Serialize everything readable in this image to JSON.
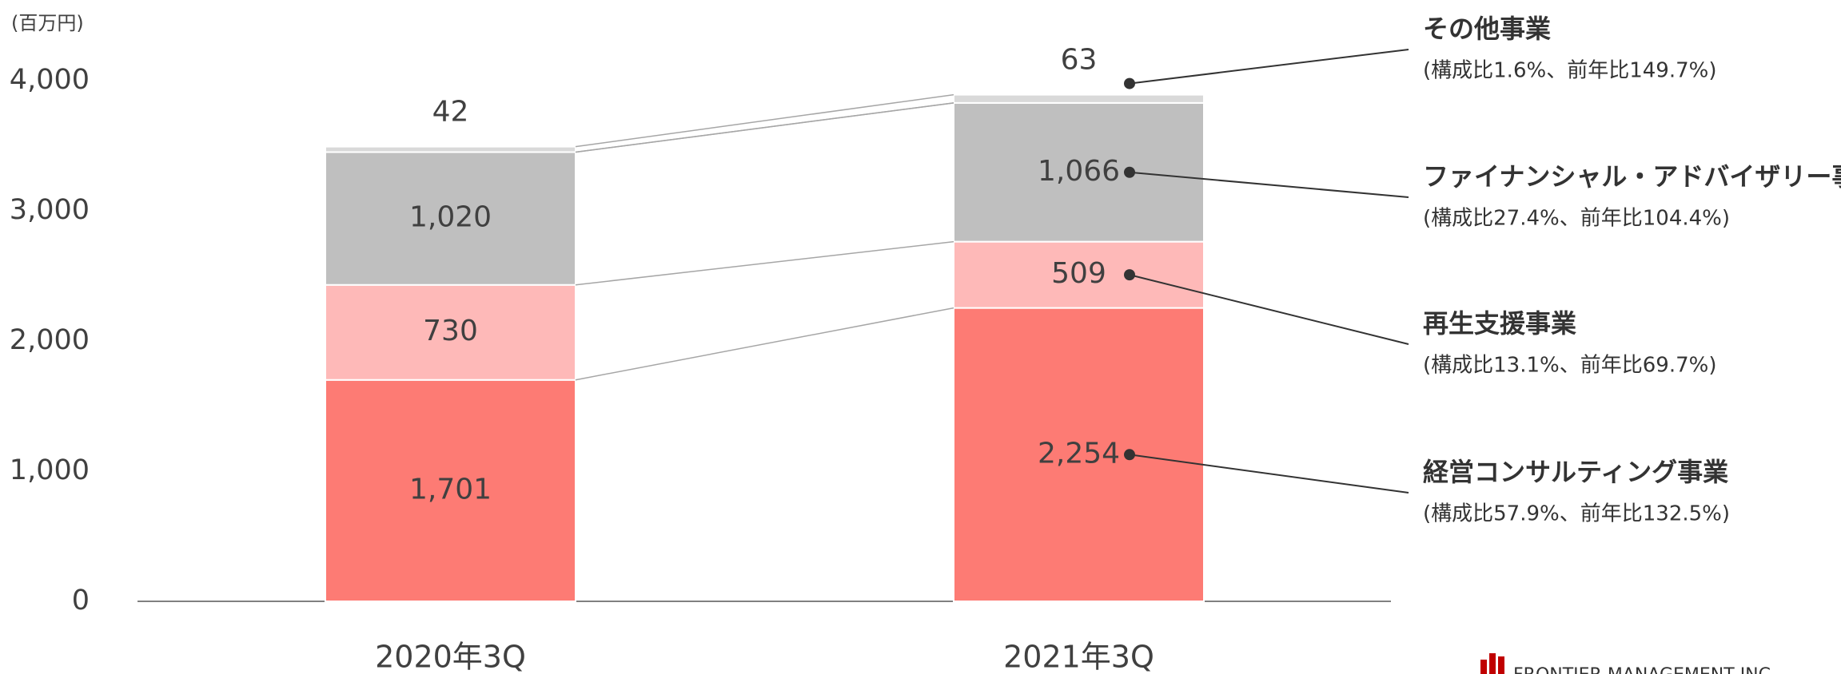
{
  "chart_data": {
    "type": "stacked_bar",
    "unit_label": "(百万円)",
    "categories": [
      "2020年3Q",
      "2021年3Q"
    ],
    "ylim": [
      0,
      4000
    ],
    "yticks": [
      0,
      {
        "value": 1000,
        "label": "1,000"
      },
      {
        "value": 2000,
        "label": "2,000"
      },
      {
        "value": 3000,
        "label": "3,000"
      },
      {
        "value": 4000,
        "label": "4,000"
      }
    ],
    "series": [
      {
        "name": "経営コンサルティング事業",
        "note": "(構成比57.9%、前年比132.5%)",
        "color": "#fd7b74",
        "values": [
          1701,
          2254
        ],
        "value_labels": [
          "1,701",
          "2,254"
        ]
      },
      {
        "name": "再生支援事業",
        "note": "(構成比13.1%、前年比69.7%)",
        "color": "#feb9b8",
        "values": [
          730,
          509
        ]
      },
      {
        "name": "ファイナンシャル・アドバイザリー事業",
        "note": "(構成比27.4%、前年比104.4%)",
        "color": "#bfbfbf",
        "values": [
          1020,
          1066
        ],
        "value_labels": [
          "1,020",
          "1,066"
        ]
      },
      {
        "name": "その他事業",
        "note": "(構成比1.6%、前年比149.7%)",
        "color": "#d9d9d9",
        "values": [
          42,
          63
        ]
      }
    ],
    "logo_text": "FRONTIER MANAGEMENT INC."
  }
}
